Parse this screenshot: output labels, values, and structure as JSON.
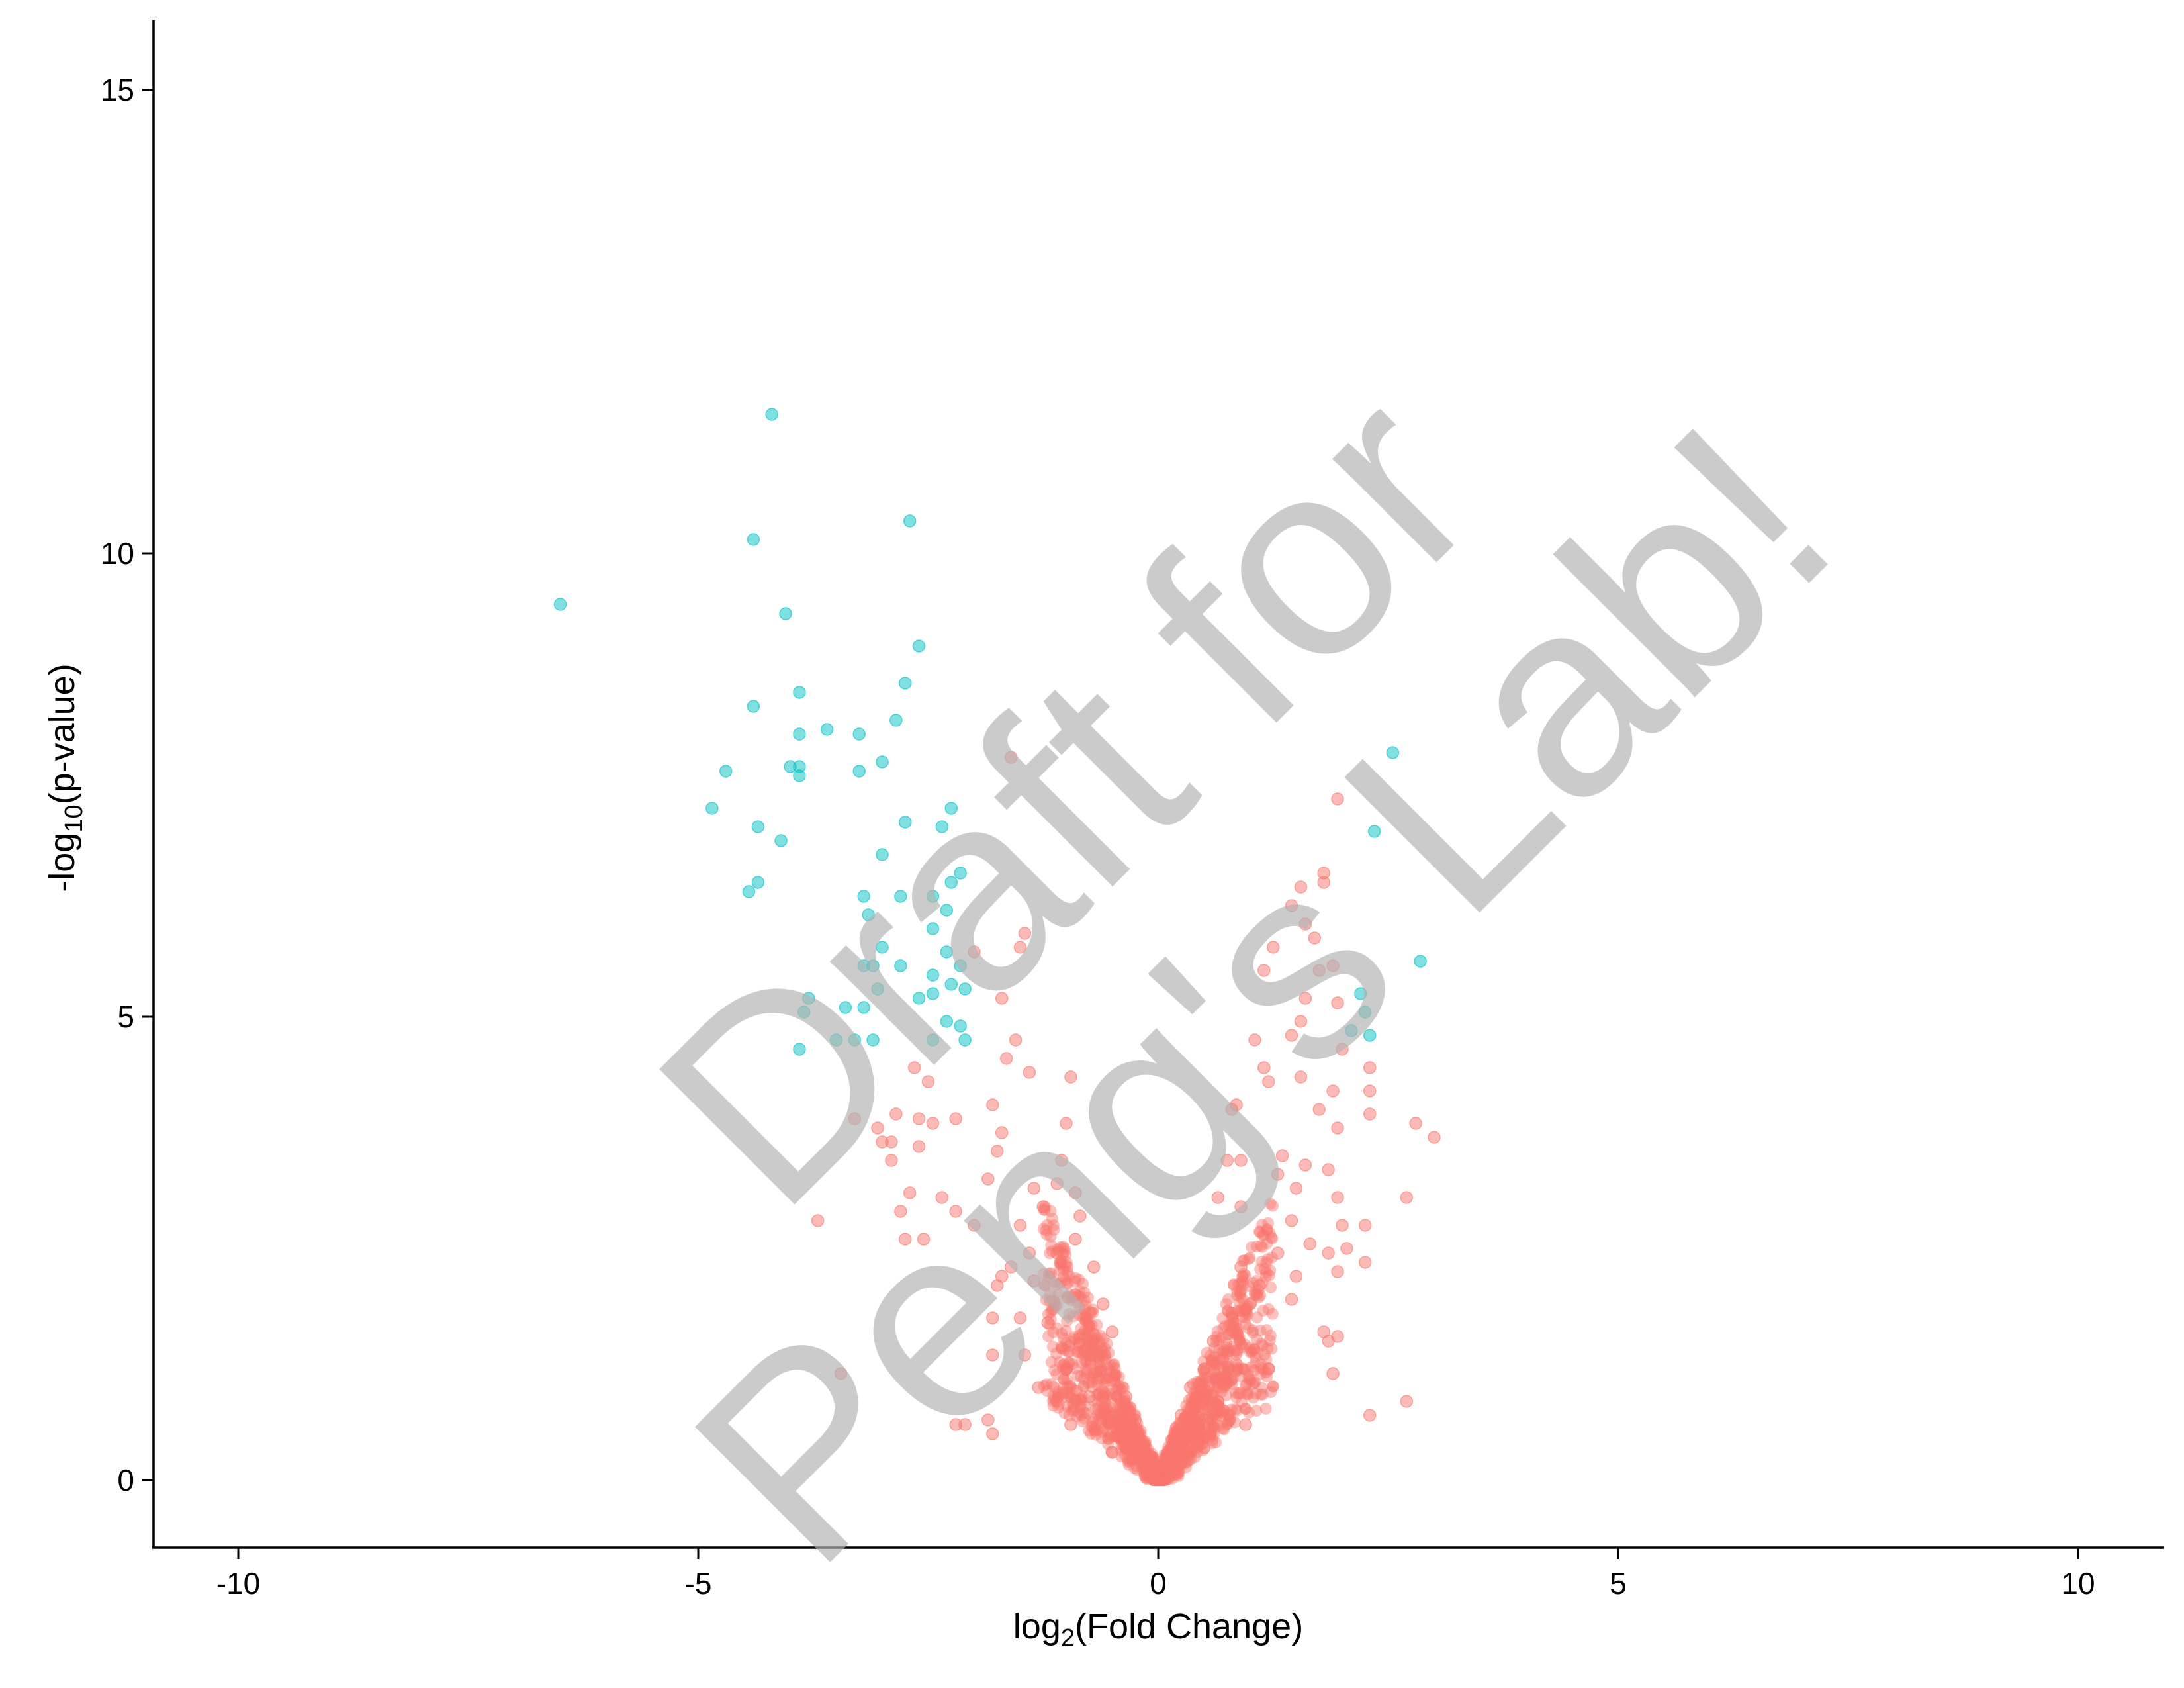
{
  "chart_data": {
    "type": "scatter",
    "xlabel": "log2(Fold Change)",
    "ylabel": "-log10(p-value)",
    "xlim": [
      -11,
      11
    ],
    "ylim": [
      -0.7,
      15.8
    ],
    "x_ticks": [
      -10,
      -5,
      0,
      5,
      10
    ],
    "y_ticks": [
      0,
      5,
      10,
      15
    ],
    "x_tick_labels": [
      "-10",
      "-5",
      "0",
      "5",
      "10"
    ],
    "y_tick_labels": [
      "0",
      "5",
      "10",
      "15"
    ],
    "grid": false,
    "legend": "none",
    "colors": {
      "significant": "#00bfc4",
      "not_significant": "#f8766d"
    },
    "watermark": [
      "Draft for",
      "Peng's Lab!"
    ],
    "series": [
      {
        "color": "#00bfc4",
        "points": [
          [
            -6.5,
            9.45
          ],
          [
            -4.2,
            11.5
          ],
          [
            -2.7,
            10.35
          ],
          [
            -4.4,
            10.15
          ],
          [
            -4.05,
            9.35
          ],
          [
            -2.6,
            9.0
          ],
          [
            -2.75,
            8.6
          ],
          [
            -3.9,
            8.5
          ],
          [
            -4.4,
            8.35
          ],
          [
            -2.85,
            8.2
          ],
          [
            -3.6,
            8.1
          ],
          [
            -3.9,
            8.05
          ],
          [
            -3.25,
            8.05
          ],
          [
            -3.0,
            7.75
          ],
          [
            -4.0,
            7.7
          ],
          [
            -3.9,
            7.7
          ],
          [
            -3.9,
            7.6
          ],
          [
            -4.7,
            7.65
          ],
          [
            -3.25,
            7.65
          ],
          [
            -4.85,
            7.25
          ],
          [
            -2.25,
            7.25
          ],
          [
            -2.75,
            7.1
          ],
          [
            -2.35,
            7.05
          ],
          [
            -4.35,
            7.05
          ],
          [
            -4.1,
            6.9
          ],
          [
            -3.0,
            6.75
          ],
          [
            -2.15,
            6.55
          ],
          [
            -2.25,
            6.45
          ],
          [
            -4.35,
            6.45
          ],
          [
            -4.45,
            6.35
          ],
          [
            -3.2,
            6.3
          ],
          [
            -2.8,
            6.3
          ],
          [
            -2.45,
            6.3
          ],
          [
            -2.3,
            6.15
          ],
          [
            -3.15,
            6.1
          ],
          [
            -2.45,
            5.95
          ],
          [
            -3.0,
            5.75
          ],
          [
            -2.3,
            5.7
          ],
          [
            -3.2,
            5.55
          ],
          [
            -3.1,
            5.55
          ],
          [
            -2.8,
            5.55
          ],
          [
            -2.15,
            5.55
          ],
          [
            -2.45,
            5.45
          ],
          [
            -2.25,
            5.35
          ],
          [
            -3.05,
            5.3
          ],
          [
            -2.1,
            5.3
          ],
          [
            -2.45,
            5.25
          ],
          [
            -2.6,
            5.2
          ],
          [
            -3.8,
            5.2
          ],
          [
            -3.2,
            5.1
          ],
          [
            -3.85,
            5.05
          ],
          [
            -3.4,
            5.1
          ],
          [
            -2.3,
            4.95
          ],
          [
            -2.15,
            4.9
          ],
          [
            -2.45,
            4.75
          ],
          [
            -2.1,
            4.75
          ],
          [
            -3.1,
            4.75
          ],
          [
            -3.5,
            4.75
          ],
          [
            -3.3,
            4.75
          ],
          [
            -3.9,
            4.65
          ],
          [
            2.55,
            7.85
          ],
          [
            2.35,
            7.0
          ],
          [
            2.85,
            5.6
          ],
          [
            2.2,
            5.25
          ],
          [
            2.25,
            5.05
          ],
          [
            2.1,
            4.85
          ],
          [
            2.3,
            4.8
          ]
        ]
      },
      {
        "color": "#f8766d",
        "points": [
          [
            -1.6,
            7.8
          ],
          [
            1.95,
            7.35
          ],
          [
            1.8,
            6.55
          ],
          [
            1.8,
            6.45
          ],
          [
            1.55,
            6.4
          ],
          [
            1.45,
            6.2
          ],
          [
            1.6,
            6.0
          ],
          [
            1.7,
            5.85
          ],
          [
            -1.45,
            5.9
          ],
          [
            -1.5,
            5.75
          ],
          [
            1.25,
            5.75
          ],
          [
            -2.0,
            5.7
          ],
          [
            1.9,
            5.55
          ],
          [
            1.75,
            5.5
          ],
          [
            1.15,
            5.5
          ],
          [
            -1.7,
            5.2
          ],
          [
            1.6,
            5.2
          ],
          [
            1.95,
            5.15
          ],
          [
            1.55,
            4.95
          ],
          [
            1.05,
            4.75
          ],
          [
            1.45,
            4.8
          ],
          [
            -1.55,
            4.75
          ],
          [
            2.0,
            4.65
          ],
          [
            -1.65,
            4.55
          ],
          [
            1.15,
            4.45
          ],
          [
            -2.65,
            4.45
          ],
          [
            1.55,
            4.35
          ],
          [
            -0.95,
            4.35
          ],
          [
            -1.4,
            4.4
          ],
          [
            2.3,
            4.45
          ],
          [
            1.2,
            4.3
          ],
          [
            1.9,
            4.2
          ],
          [
            -2.5,
            4.3
          ],
          [
            2.3,
            4.2
          ],
          [
            -1.8,
            4.05
          ],
          [
            0.85,
            4.05
          ],
          [
            0.8,
            4.0
          ],
          [
            1.75,
            4.0
          ],
          [
            2.3,
            3.95
          ],
          [
            -2.85,
            3.95
          ],
          [
            -3.3,
            3.9
          ],
          [
            -2.6,
            3.9
          ],
          [
            -2.2,
            3.9
          ],
          [
            -2.45,
            3.85
          ],
          [
            -1.0,
            3.85
          ],
          [
            1.95,
            3.8
          ],
          [
            2.8,
            3.85
          ],
          [
            -3.05,
            3.8
          ],
          [
            -1.7,
            3.75
          ],
          [
            -2.9,
            3.65
          ],
          [
            -3.0,
            3.65
          ],
          [
            3.0,
            3.7
          ],
          [
            -2.6,
            3.6
          ],
          [
            -1.75,
            3.55
          ],
          [
            1.35,
            3.5
          ],
          [
            0.9,
            3.45
          ],
          [
            0.75,
            3.45
          ],
          [
            -2.9,
            3.45
          ],
          [
            1.6,
            3.4
          ],
          [
            -1.05,
            3.45
          ],
          [
            1.85,
            3.35
          ],
          [
            -1.85,
            3.25
          ],
          [
            1.3,
            3.3
          ],
          [
            -1.1,
            3.2
          ],
          [
            -1.35,
            3.15
          ],
          [
            -0.9,
            3.1
          ],
          [
            1.5,
            3.15
          ],
          [
            -2.7,
            3.1
          ],
          [
            -1.25,
            2.95
          ],
          [
            -2.35,
            3.05
          ],
          [
            1.95,
            3.05
          ],
          [
            2.7,
            3.05
          ],
          [
            0.65,
            3.05
          ],
          [
            0.9,
            2.95
          ],
          [
            -2.8,
            2.9
          ],
          [
            -2.2,
            2.9
          ],
          [
            -0.85,
            2.85
          ],
          [
            1.45,
            2.8
          ],
          [
            -1.5,
            2.75
          ],
          [
            -3.7,
            2.8
          ],
          [
            -2.0,
            2.75
          ],
          [
            2.0,
            2.75
          ],
          [
            2.25,
            2.75
          ],
          [
            -0.9,
            2.6
          ],
          [
            -2.75,
            2.6
          ],
          [
            -2.55,
            2.6
          ],
          [
            1.65,
            2.55
          ],
          [
            2.05,
            2.5
          ],
          [
            1.85,
            2.45
          ],
          [
            -1.1,
            2.45
          ],
          [
            -1.4,
            2.45
          ],
          [
            1.3,
            2.45
          ],
          [
            2.25,
            2.35
          ],
          [
            -1.6,
            2.3
          ],
          [
            1.5,
            2.2
          ],
          [
            -1.7,
            2.2
          ],
          [
            -1.35,
            2.15
          ],
          [
            1.95,
            2.25
          ],
          [
            -1.75,
            2.1
          ],
          [
            -1.5,
            1.75
          ],
          [
            -1.8,
            1.75
          ],
          [
            1.45,
            1.95
          ],
          [
            1.8,
            1.6
          ],
          [
            1.95,
            1.55
          ],
          [
            -1.45,
            1.35
          ],
          [
            -1.8,
            1.35
          ],
          [
            1.85,
            1.5
          ],
          [
            1.9,
            1.15
          ],
          [
            -3.45,
            1.15
          ],
          [
            2.7,
            0.85
          ],
          [
            -1.85,
            0.65
          ],
          [
            -2.2,
            0.6
          ],
          [
            -2.1,
            0.6
          ],
          [
            -1.8,
            0.5
          ],
          [
            2.3,
            0.7
          ],
          [
            -1.0,
            1.2
          ],
          [
            -0.8,
            1.4
          ],
          [
            -0.6,
            0.9
          ],
          [
            -0.55,
            0.7
          ],
          [
            -0.5,
            1.6
          ],
          [
            -0.45,
            0.55
          ],
          [
            -0.4,
            0.45
          ],
          [
            -0.35,
            0.35
          ],
          [
            -0.3,
            0.5
          ],
          [
            -0.25,
            0.3
          ],
          [
            -0.2,
            0.25
          ],
          [
            -0.15,
            0.2
          ],
          [
            -0.1,
            0.15
          ],
          [
            -0.05,
            0.08
          ],
          [
            0.0,
            0.02
          ],
          [
            0.05,
            0.08
          ],
          [
            0.1,
            0.15
          ],
          [
            0.15,
            0.2
          ],
          [
            0.2,
            0.3
          ],
          [
            0.25,
            0.4
          ],
          [
            0.3,
            0.55
          ],
          [
            0.35,
            0.6
          ],
          [
            0.4,
            0.8
          ],
          [
            0.45,
            0.9
          ],
          [
            0.5,
            1.2
          ],
          [
            0.55,
            1.0
          ],
          [
            0.6,
            1.5
          ],
          [
            0.7,
            1.3
          ],
          [
            0.8,
            1.8
          ],
          [
            0.9,
            2.3
          ],
          [
            1.0,
            1.9
          ],
          [
            1.1,
            2.1
          ],
          [
            -0.6,
            1.9
          ],
          [
            -0.7,
            2.3
          ],
          [
            -0.9,
            2.0
          ],
          [
            -1.2,
            1.7
          ],
          [
            -0.75,
            0.9
          ],
          [
            -0.65,
            1.1
          ],
          [
            0.65,
            0.85
          ],
          [
            0.75,
            1.05
          ],
          [
            1.2,
            1.2
          ],
          [
            -1.3,
            1.0
          ],
          [
            -0.95,
            0.6
          ],
          [
            0.95,
            0.6
          ],
          [
            -0.35,
            0.9
          ],
          [
            0.35,
            1.0
          ],
          [
            -0.25,
            0.65
          ],
          [
            0.25,
            0.7
          ],
          [
            -0.5,
            0.3
          ],
          [
            0.5,
            0.35
          ]
        ]
      }
    ]
  }
}
